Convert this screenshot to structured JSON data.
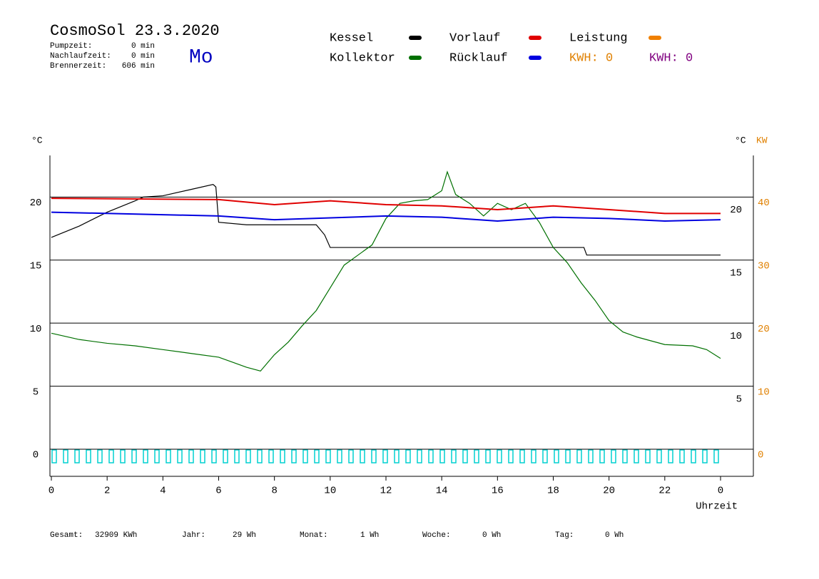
{
  "header": {
    "title": "CosmoSol 23.3.2020",
    "day": "Mo",
    "stats": [
      {
        "label": "Pumpzeit:",
        "value": "0 min"
      },
      {
        "label": "Nachlaufzeit:",
        "value": "0 min"
      },
      {
        "label": "Brennerzeit:",
        "value": "606 min"
      }
    ]
  },
  "chart_data": {
    "type": "line",
    "y_label": "°C",
    "y2_label_celsius": "°C",
    "y2_label": "KW",
    "x_label": "Uhrzeit",
    "xlim": [
      0,
      24
    ],
    "xticks": [
      0,
      2,
      4,
      6,
      8,
      10,
      12,
      14,
      16,
      18,
      20,
      22,
      {
        "value": 24,
        "label": "0"
      }
    ],
    "ylim": [
      -2.15,
      23.3
    ],
    "yticks": [
      0,
      5,
      10,
      15,
      20
    ],
    "yticks_right": [
      5,
      10,
      15,
      20
    ],
    "y2lim": [
      -4.3,
      46.6
    ],
    "y2ticks": [
      0,
      10,
      20,
      30,
      40
    ],
    "y2_color": "#e08000",
    "grid": true,
    "series": [
      {
        "name": "Kessel",
        "color": "#000000",
        "x": [
          0,
          1,
          2,
          3,
          3.3,
          4,
          5,
          5.8,
          5.9,
          6,
          7,
          9.5,
          9.8,
          10,
          19.1,
          19.2,
          24
        ],
        "values": [
          16.8,
          17.7,
          18.8,
          19.7,
          20.0,
          20.1,
          20.6,
          21.0,
          20.8,
          18.0,
          17.8,
          17.8,
          17.0,
          16.0,
          16.0,
          15.4,
          15.4
        ]
      },
      {
        "name": "Kollektor",
        "color": "#007000",
        "x": [
          0,
          1,
          2,
          3,
          4,
          5,
          6,
          7,
          7.5,
          8,
          8.5,
          9,
          9.5,
          10,
          10.5,
          11,
          11.5,
          12,
          12.5,
          13,
          13.5,
          14,
          14.2,
          14.5,
          15,
          15.5,
          16,
          16.5,
          17,
          17.5,
          18,
          18.5,
          19,
          19.5,
          20,
          20.5,
          21,
          22,
          23,
          23.5,
          24
        ],
        "values": [
          9.2,
          8.7,
          8.4,
          8.2,
          7.9,
          7.6,
          7.3,
          6.5,
          6.2,
          7.5,
          8.5,
          9.8,
          11.0,
          12.8,
          14.6,
          15.4,
          16.2,
          18.3,
          19.5,
          19.7,
          19.8,
          20.5,
          22.0,
          20.2,
          19.5,
          18.5,
          19.5,
          19.0,
          19.5,
          18.0,
          16.0,
          14.8,
          13.2,
          11.8,
          10.2,
          9.3,
          8.9,
          8.3,
          8.2,
          7.9,
          7.2
        ]
      },
      {
        "name": "Vorlauf",
        "color": "#e00000",
        "x": [
          0,
          6,
          8,
          10,
          12,
          14,
          16,
          18,
          20,
          22,
          24
        ],
        "values": [
          19.9,
          19.8,
          19.4,
          19.7,
          19.4,
          19.3,
          19.0,
          19.3,
          19.0,
          18.7,
          18.7
        ]
      },
      {
        "name": "Rücklauf",
        "color": "#0000e0",
        "x": [
          0,
          6,
          8,
          12,
          14,
          16,
          18,
          20,
          22,
          24
        ],
        "values": [
          18.8,
          18.5,
          18.2,
          18.5,
          18.4,
          18.1,
          18.4,
          18.3,
          18.1,
          18.2
        ]
      }
    ],
    "legend_extra": [
      {
        "name": "Leistung",
        "color": "#f08000"
      }
    ],
    "kwh": [
      {
        "label": "KWH: 0",
        "color": "#e08000"
      },
      {
        "label": "KWH: 0",
        "color": "#800080"
      }
    ]
  },
  "footer": [
    {
      "label": "Gesamt:",
      "value": "32909 KWh"
    },
    {
      "label": "Jahr:",
      "value": "29 Wh"
    },
    {
      "label": "Monat:",
      "value": "1 Wh"
    },
    {
      "label": "Woche:",
      "value": "0 Wh"
    },
    {
      "label": "Tag:",
      "value": "0 Wh"
    }
  ]
}
